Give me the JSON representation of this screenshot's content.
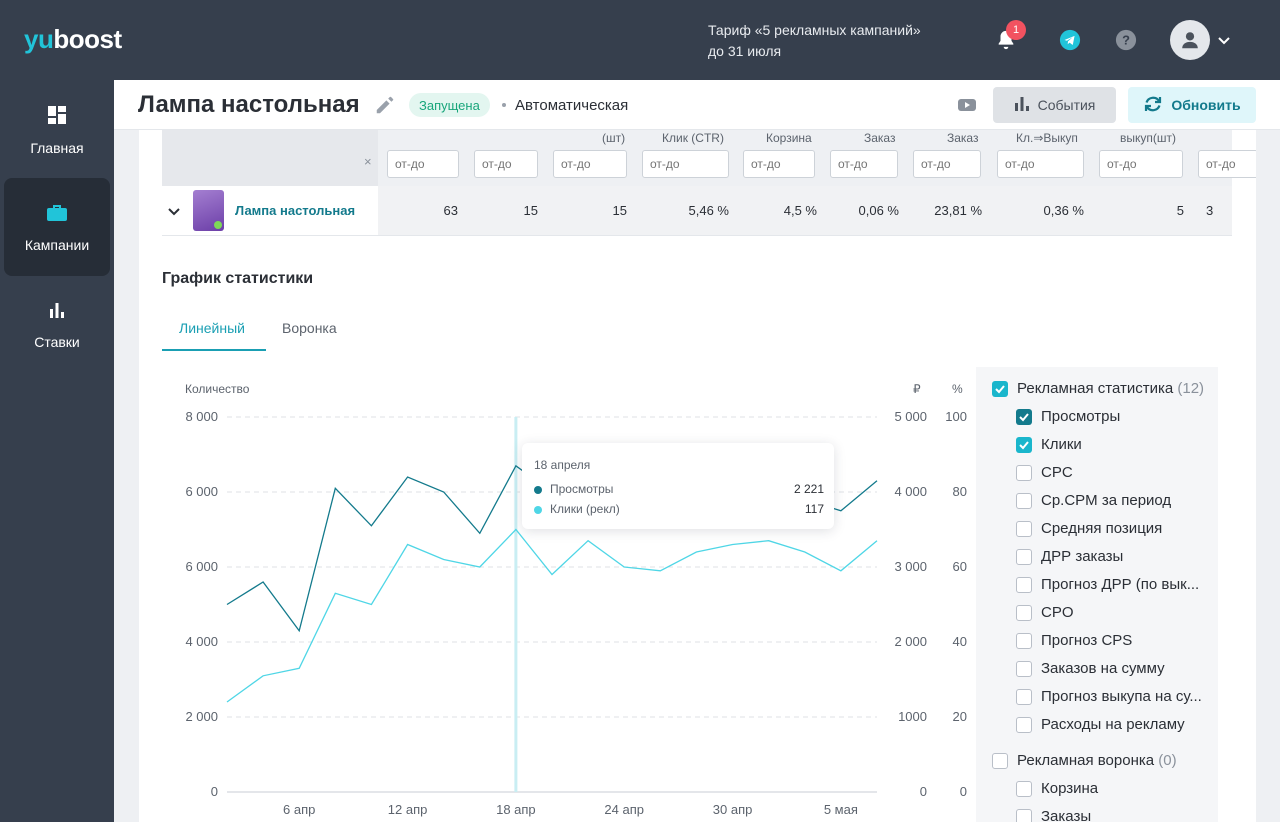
{
  "brand": {
    "logo_prefix": "yu",
    "logo_suffix": "boost"
  },
  "topbar": {
    "tariff_line1": "Тариф «5 рекламных кампаний»",
    "tariff_line2": "до 31 июля",
    "notifications_count": "1"
  },
  "sidebar": {
    "items": [
      {
        "label": "Главная",
        "icon": "dashboard-icon",
        "active": false
      },
      {
        "label": "Кампании",
        "icon": "briefcase-icon",
        "active": true
      },
      {
        "label": "Ставки",
        "icon": "bar-chart-icon",
        "active": false
      }
    ]
  },
  "header": {
    "title": "Лампа настольная",
    "status": "Запущена",
    "mode": "Автоматическая",
    "events_label": "События",
    "refresh_label": "Обновить"
  },
  "table": {
    "clear_symbol": "×",
    "placeholder": "от-до",
    "columns": [
      "",
      "",
      "(шт)",
      "Клик (CTR)",
      "Корзина",
      "Заказ",
      "Заказ",
      "Кл.⇒Выкуп",
      "выкуп(шт)",
      ""
    ],
    "row": {
      "name": "Лампа настольная",
      "values": [
        "63",
        "15",
        "15",
        "5,46 %",
        "4,5 %",
        "0,06 %",
        "23,81 %",
        "0,36 %",
        "5",
        "3"
      ]
    }
  },
  "chart_section": {
    "title": "График статистики",
    "tabs": [
      "Линейный",
      "Воронка"
    ],
    "active_tab": 0
  },
  "chart_data": {
    "type": "line",
    "ylabel": "Количество",
    "y2label": "₽",
    "y3label": "%",
    "left_ticks": [
      "8 000",
      "6 000",
      "6 000",
      "4 000",
      "2 000",
      "0"
    ],
    "rub_ticks": [
      "5 000",
      "4 000",
      "3 000",
      "2 000",
      "1000",
      "0"
    ],
    "pct_ticks": [
      "100",
      "80",
      "60",
      "40",
      "20",
      "0"
    ],
    "x_ticks": [
      "6 апр",
      "12 апр",
      "18 апр",
      "24 апр",
      "30 апр",
      "5 мая"
    ],
    "ylim": [
      0,
      100
    ],
    "series": [
      {
        "name": "Просмотры",
        "color": "#137a8c",
        "values": [
          50,
          56,
          43,
          81,
          71,
          84,
          80,
          69,
          87,
          80,
          78,
          82,
          84,
          82,
          85,
          83,
          78,
          75,
          83
        ]
      },
      {
        "name": "Клики (рекл)",
        "color": "#4fd6e6",
        "values": [
          24,
          31,
          33,
          53,
          50,
          66,
          62,
          60,
          70,
          58,
          67,
          60,
          59,
          64,
          66,
          67,
          64,
          59,
          67
        ]
      }
    ],
    "highlight_index": 8,
    "tooltip": {
      "date": "18 апреля",
      "rows": [
        {
          "label": "Просмотры",
          "value": "2 221"
        },
        {
          "label": "Клики (рекл)",
          "value": "117"
        }
      ]
    }
  },
  "legend": {
    "group1": {
      "label": "Рекламная статистика",
      "count": "(12)"
    },
    "items": [
      {
        "label": "Просмотры",
        "state": "on-dark"
      },
      {
        "label": "Клики",
        "state": "on"
      },
      {
        "label": "CPC",
        "state": "off"
      },
      {
        "label": "Ср.CPM за период",
        "state": "off"
      },
      {
        "label": "Средняя позиция",
        "state": "off"
      },
      {
        "label": "ДРР заказы",
        "state": "off"
      },
      {
        "label": "Прогноз ДРР (по вык...",
        "state": "off"
      },
      {
        "label": "CPO",
        "state": "off"
      },
      {
        "label": "Прогноз CPS",
        "state": "off"
      },
      {
        "label": "Заказов на сумму",
        "state": "off"
      },
      {
        "label": "Прогноз выкупа на су...",
        "state": "off"
      },
      {
        "label": "Расходы на рекламу",
        "state": "off"
      }
    ],
    "group2": {
      "label": "Рекламная воронка",
      "count": "(0)"
    },
    "items2": [
      {
        "label": "Корзина",
        "state": "off"
      },
      {
        "label": "Заказы",
        "state": "off"
      }
    ]
  }
}
